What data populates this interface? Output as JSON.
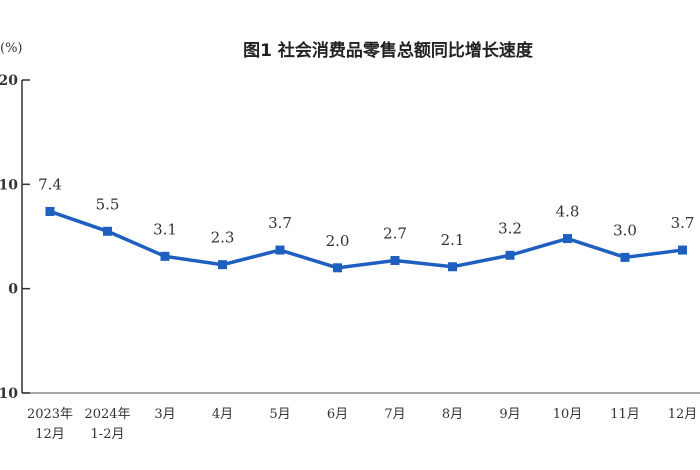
{
  "chart_data": {
    "type": "line",
    "title": "图1  社会消费品零售总额同比增长速度",
    "ylabel": "(%)",
    "xlabel": "",
    "categories": [
      [
        "2023年",
        "12月"
      ],
      [
        "2024年",
        "1-2月"
      ],
      [
        "3月"
      ],
      [
        "4月"
      ],
      [
        "5月"
      ],
      [
        "6月"
      ],
      [
        "7月"
      ],
      [
        "8月"
      ],
      [
        "9月"
      ],
      [
        "10月"
      ],
      [
        "11月"
      ],
      [
        "12月"
      ]
    ],
    "values": [
      7.4,
      5.5,
      3.1,
      2.3,
      3.7,
      2.0,
      2.7,
      2.1,
      3.2,
      4.8,
      3.0,
      3.7
    ],
    "data_labels": [
      "7.4",
      "5.5",
      "3.1",
      "2.3",
      "3.7",
      "2.0",
      "2.7",
      "2.1",
      "3.2",
      "4.8",
      "3.0",
      "3.7"
    ],
    "ylim": [
      -10,
      20
    ],
    "yticks": [
      "20",
      "10",
      "0",
      "-10"
    ],
    "grid": false,
    "legend": "none",
    "series_color": "#1f5fbf",
    "marker": "square"
  }
}
